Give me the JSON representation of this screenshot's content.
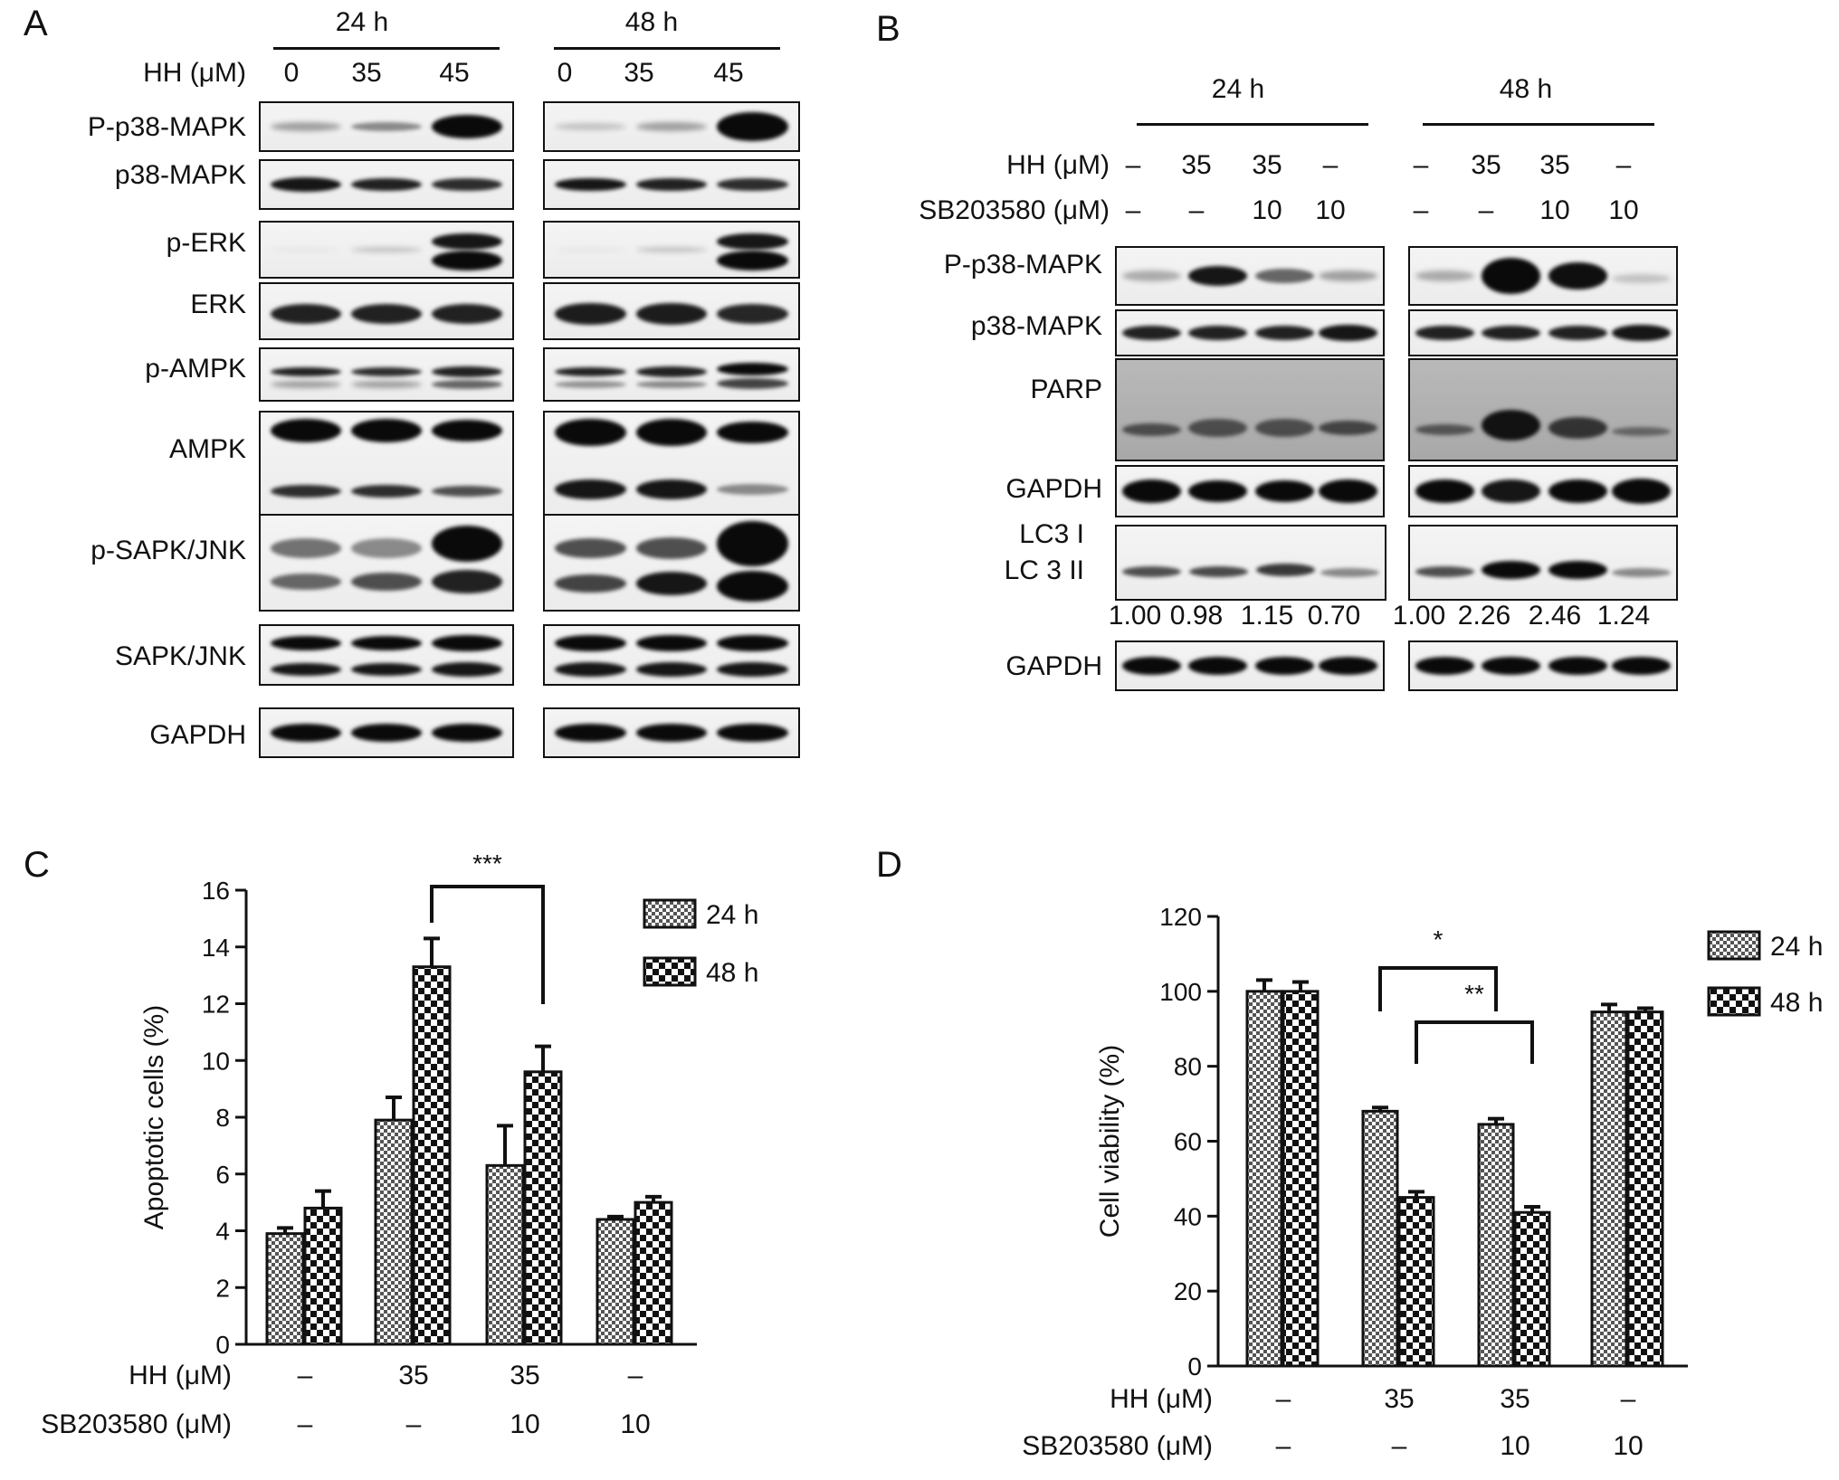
{
  "panels": {
    "A": "A",
    "B": "B",
    "C": "C",
    "D": "D"
  },
  "panelA": {
    "time_24": "24 h",
    "time_48": "48 h",
    "hh_label": "HH (μM)",
    "doses_24": [
      "0",
      "35",
      "45"
    ],
    "doses_48": [
      "0",
      "35",
      "45"
    ],
    "rows": [
      "P-p38-MAPK",
      "p38-MAPK",
      "p-ERK",
      "ERK",
      "p-AMPK",
      "AMPK",
      "p-SAPK/JNK",
      "SAPK/JNK",
      "GAPDH"
    ]
  },
  "panelB": {
    "time_24": "24 h",
    "time_48": "48 h",
    "hh_label": "HH (μM)",
    "sb_label": "SB203580 (μM)",
    "hh_24": [
      "–",
      "35",
      "35",
      "–"
    ],
    "sb_24": [
      "–",
      "–",
      "10",
      "10"
    ],
    "hh_48": [
      "–",
      "35",
      "35",
      "–"
    ],
    "sb_48": [
      "–",
      "–",
      "10",
      "10"
    ],
    "rows": [
      "P-p38-MAPK",
      "p38-MAPK",
      "PARP",
      "GAPDH",
      "LC3 I",
      "LC 3 II",
      "GAPDH"
    ],
    "ratios_24": [
      "1.00",
      "0.98",
      "1.15",
      "0.70"
    ],
    "ratios_48": [
      "1.00",
      "2.26",
      "2.46",
      "1.24"
    ]
  },
  "chart_data": [
    {
      "type": "bar",
      "panel": "C",
      "ylabel": "Apoptotic cells (%)",
      "ylim": [
        0,
        16
      ],
      "yticks": [
        "0",
        "2",
        "4",
        "6",
        "8",
        "10",
        "12",
        "14",
        "16"
      ],
      "categories": [
        "1",
        "2",
        "3",
        "4"
      ],
      "row_labels": [
        "HH (μM)",
        "SB203580 (μM)"
      ],
      "hh": [
        "–",
        "35",
        "35",
        "–"
      ],
      "sb": [
        "–",
        "–",
        "10",
        "10"
      ],
      "series": [
        {
          "name": "24 h",
          "values": [
            3.9,
            7.9,
            6.3,
            4.4
          ],
          "errors": [
            0.2,
            0.8,
            1.4,
            0.1
          ]
        },
        {
          "name": "48 h",
          "values": [
            4.8,
            13.3,
            9.6,
            5.0
          ],
          "errors": [
            0.6,
            1.0,
            0.9,
            0.2
          ]
        }
      ],
      "significance": [
        {
          "label": "***",
          "from": 1,
          "to": 2,
          "series": 1
        }
      ],
      "legend": "top-right"
    },
    {
      "type": "bar",
      "panel": "D",
      "ylabel": "Cell viability (%)",
      "ylim": [
        0,
        120
      ],
      "yticks": [
        "0",
        "20",
        "40",
        "60",
        "80",
        "100",
        "120"
      ],
      "categories": [
        "1",
        "2",
        "3",
        "4"
      ],
      "row_labels": [
        "HH (μM)",
        "SB203580 (μM)"
      ],
      "hh": [
        "–",
        "35",
        "35",
        "–"
      ],
      "sb": [
        "–",
        "–",
        "10",
        "10"
      ],
      "series": [
        {
          "name": "24 h",
          "values": [
            100,
            68,
            64.5,
            94.5
          ],
          "errors": [
            3,
            1,
            1.5,
            2
          ]
        },
        {
          "name": "48 h",
          "values": [
            100,
            45,
            41,
            94.5
          ],
          "errors": [
            2.5,
            1.5,
            1.5,
            1
          ]
        }
      ],
      "significance": [
        {
          "label": "*",
          "from": 1,
          "to": 2,
          "series": 0
        },
        {
          "label": "**",
          "from": 1,
          "to": 2,
          "series": 1
        }
      ],
      "legend": "top-right"
    }
  ]
}
